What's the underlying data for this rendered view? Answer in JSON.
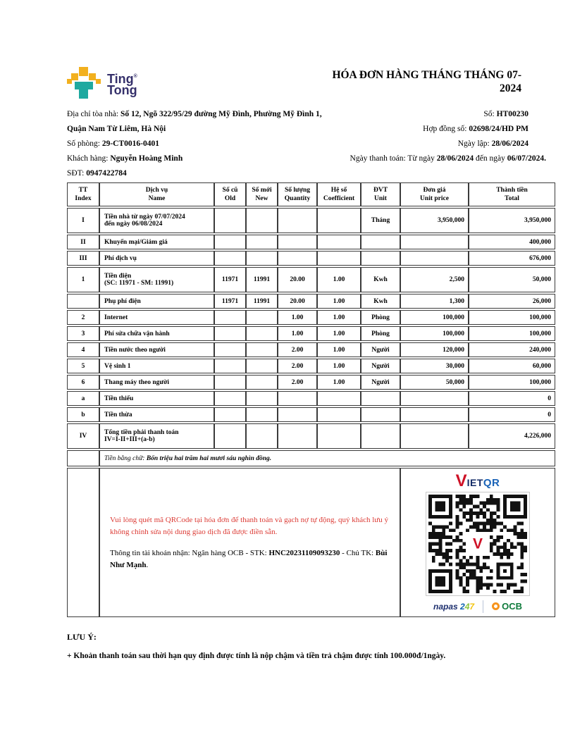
{
  "brand": {
    "line1": "Ting",
    "line2": "Tong",
    "reg": "®"
  },
  "title": {
    "line1": "HÓA ĐƠN HÀNG THÁNG THÁNG 07-",
    "line2": "2024"
  },
  "colors": {
    "note_red": "#dc3b35",
    "brand_yellow": "#f2b01e",
    "brand_teal": "#1fa9a0",
    "brand_navy": "#35306b",
    "vietqr_red": "#ce1126",
    "vietqr_navy": "#122a66",
    "vietqr_blue": "#1a63b7",
    "napas_navy": "#1d2f6e",
    "ocb_green": "#0f7b3c",
    "ocb_orange": "#f7941d"
  },
  "header_left": {
    "address": {
      "label": "Địa chỉ tòa nhà: ",
      "value": "Số 12, Ngõ 322/95/29 đường Mỹ Đình, Phường Mỹ Đình 1, Quận Nam Từ Liêm, Hà Nội"
    },
    "room": {
      "label": "Số phòng: ",
      "value": "29-CT0016-0401"
    },
    "customer": {
      "label": "Khách hàng: ",
      "value": "Nguyễn Hoàng Minh"
    },
    "phone": {
      "label": "SĐT: ",
      "value": "0947422784"
    }
  },
  "header_right": {
    "number": {
      "label": "Số: ",
      "value": "HT00230"
    },
    "contract": {
      "label": "Hợp đồng số: ",
      "value": "02698/24/HD PM"
    },
    "created": {
      "label": "Ngày lập: ",
      "value": "28/06/2024"
    },
    "payment": {
      "label1": "Ngày thanh toán: Từ ngày ",
      "value1": "28/06/2024",
      "label2": " đến ngày ",
      "value2": "06/07/2024",
      "suffix": "."
    }
  },
  "table": {
    "headers": [
      {
        "vi": "TT",
        "en": "Index"
      },
      {
        "vi": "Dịch vụ",
        "en": "Name"
      },
      {
        "vi": "Số cũ",
        "en": "Old"
      },
      {
        "vi": "Số mới",
        "en": "New"
      },
      {
        "vi": "Số lượng",
        "en": "Quantity"
      },
      {
        "vi": "Hệ số",
        "en": "Coefficient"
      },
      {
        "vi": "ĐVT",
        "en": "Unit"
      },
      {
        "vi": "Đơn giá",
        "en": "Unit price"
      },
      {
        "vi": "Thành tiền",
        "en": "Total"
      }
    ],
    "rows": [
      {
        "tt": "I",
        "name": "Tiền nhà từ ngày 07/07/2024",
        "name2": "đến ngày 06/08/2024",
        "old": "",
        "new": "",
        "qty": "",
        "coef": "",
        "unit": "Tháng",
        "price": "3,950,000",
        "total": "3,950,000"
      },
      {
        "tt": "II",
        "name": "Khuyến mại/Giảm giá",
        "name2": "",
        "old": "",
        "new": "",
        "qty": "",
        "coef": "",
        "unit": "",
        "price": "",
        "total": "400,000"
      },
      {
        "tt": "III",
        "name": "Phí dịch vụ",
        "name2": "",
        "old": "",
        "new": "",
        "qty": "",
        "coef": "",
        "unit": "",
        "price": "",
        "total": "676,000"
      },
      {
        "tt": "1",
        "name": "Tiền điện",
        "name2": "(SC: 11971 - SM: 11991)",
        "old": "11971",
        "new": "11991",
        "qty": "20.00",
        "coef": "1.00",
        "unit": "Kwh",
        "price": "2,500",
        "total": "50,000"
      },
      {
        "tt": "",
        "name": "Phụ phí điện",
        "name2": "",
        "old": "11971",
        "new": "11991",
        "qty": "20.00",
        "coef": "1.00",
        "unit": "Kwh",
        "price": "1,300",
        "total": "26,000"
      },
      {
        "tt": "2",
        "name": "Internet",
        "name2": "",
        "old": "",
        "new": "",
        "qty": "1.00",
        "coef": "1.00",
        "unit": "Phòng",
        "price": "100,000",
        "total": "100,000"
      },
      {
        "tt": "3",
        "name": "Phí sửa chữa vận hành",
        "name2": "",
        "old": "",
        "new": "",
        "qty": "1.00",
        "coef": "1.00",
        "unit": "Phòng",
        "price": "100,000",
        "total": "100,000"
      },
      {
        "tt": "4",
        "name": "Tiền nước theo người",
        "name2": "",
        "old": "",
        "new": "",
        "qty": "2.00",
        "coef": "1.00",
        "unit": "Người",
        "price": "120,000",
        "total": "240,000"
      },
      {
        "tt": "5",
        "name": "Vệ sinh 1",
        "name2": "",
        "old": "",
        "new": "",
        "qty": "2.00",
        "coef": "1.00",
        "unit": "Người",
        "price": "30,000",
        "total": "60,000"
      },
      {
        "tt": "6",
        "name": "Thang máy theo người",
        "name2": "",
        "old": "",
        "new": "",
        "qty": "2.00",
        "coef": "1.00",
        "unit": "Người",
        "price": "50,000",
        "total": "100,000"
      },
      {
        "tt": "a",
        "name": "Tiền thiếu",
        "name2": "",
        "old": "",
        "new": "",
        "qty": "",
        "coef": "",
        "unit": "",
        "price": "",
        "total": "0"
      },
      {
        "tt": "b",
        "name": "Tiền thừa",
        "name2": "",
        "old": "",
        "new": "",
        "qty": "",
        "coef": "",
        "unit": "",
        "price": "",
        "total": "0"
      },
      {
        "tt": "IV",
        "name": "Tổng tiền phải thanh toán",
        "name2": "IV=I-II+III+(a-b)",
        "old": "",
        "new": "",
        "qty": "",
        "coef": "",
        "unit": "",
        "price": "",
        "total": "4,226,000"
      }
    ]
  },
  "words_row": {
    "label": "Tiền bằng chữ: ",
    "value": "Bốn triệu hai trăm hai mươi sáu nghìn đồng."
  },
  "qr_section": {
    "note_red": "Vui lòng quét mã QRCode tại hóa đơn để thanh toán và gạch nợ tự động, quý khách lưu ý không chỉnh sửa nội dung giao dịch đã được điền sẵn.",
    "account_prefix": "Thông tin tài khoản nhận: Ngân hàng OCB - STK: ",
    "account_number": "HNC20231109093230",
    "account_mid": " - Chủ TK: ",
    "account_holder": "Bùi Như Mạnh",
    "account_suffix": ".",
    "vietqr_v": "V",
    "vietqr_iet": "IET",
    "vietqr_qr": "QR",
    "napas_text": "napas",
    "napas_2": "2",
    "napas_4": "4",
    "napas_7": "7",
    "ocb_text": "OCB"
  },
  "footer": {
    "heading": "LƯU Ý:",
    "note": "+ Khoản thanh toán sau thời hạn quy định được tính là nộp chậm và tiền trả chậm được tính 100.000đ/1ngày."
  }
}
